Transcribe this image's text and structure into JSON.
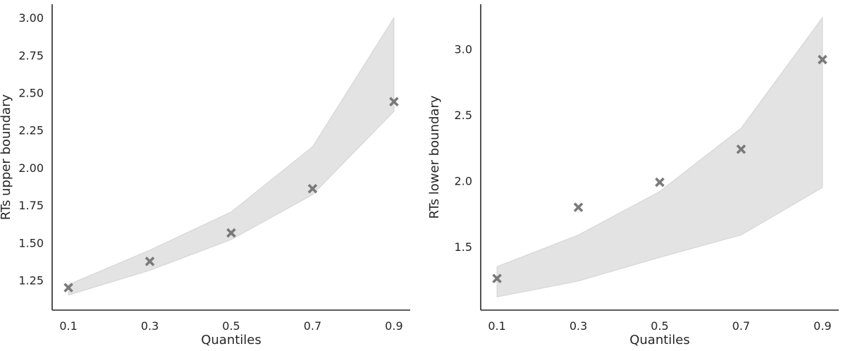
{
  "chart_data": [
    {
      "type": "scatter",
      "xlabel": "Quantiles",
      "ylabel": "RTs upper boundary",
      "x": [
        0.1,
        0.3,
        0.5,
        0.7,
        0.9
      ],
      "xticks": [
        "0.1",
        "0.3",
        "0.5",
        "0.7",
        "0.9"
      ],
      "xlim": [
        0.06,
        0.94
      ],
      "ylim": [
        1.05,
        3.09
      ],
      "yticks": [
        "1.25",
        "1.50",
        "1.75",
        "2.00",
        "2.25",
        "2.50",
        "2.75",
        "3.00"
      ],
      "points": [
        1.2,
        1.375,
        1.565,
        1.86,
        2.44
      ],
      "band_lower": [
        1.15,
        1.315,
        1.52,
        1.82,
        2.375
      ],
      "band_upper": [
        1.22,
        1.45,
        1.705,
        2.14,
        3.0
      ],
      "marker": "x",
      "marker_color": "#7a7a7a",
      "band_color": "#c8c8c8",
      "grid": false
    },
    {
      "type": "scatter",
      "xlabel": "Quantiles",
      "ylabel": "RTs lower boundary",
      "x": [
        0.1,
        0.3,
        0.5,
        0.7,
        0.9
      ],
      "xticks": [
        "0.1",
        "0.3",
        "0.5",
        "0.7",
        "0.9"
      ],
      "xlim": [
        0.06,
        0.94
      ],
      "ylim": [
        1.02,
        3.34
      ],
      "yticks": [
        "1.5",
        "2.0",
        "2.5",
        "3.0"
      ],
      "points": [
        1.26,
        1.8,
        1.99,
        2.24,
        2.92
      ],
      "band_lower": [
        1.12,
        1.24,
        1.42,
        1.59,
        1.95
      ],
      "band_upper": [
        1.35,
        1.59,
        1.92,
        2.4,
        3.24
      ],
      "marker": "x",
      "marker_color": "#7a7a7a",
      "band_color": "#c8c8c8",
      "grid": false
    }
  ]
}
